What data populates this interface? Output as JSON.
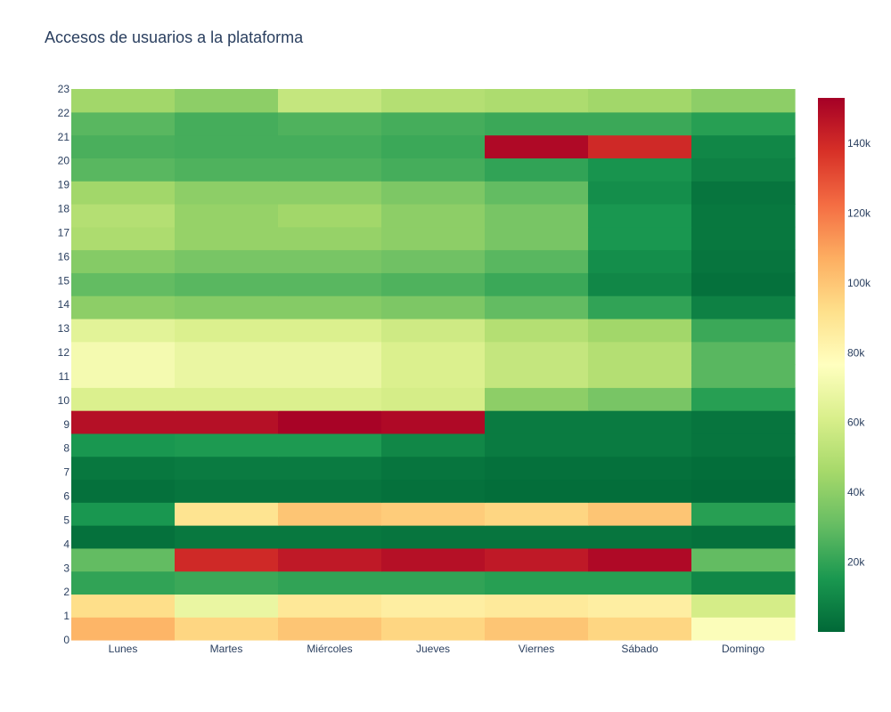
{
  "chart_data": {
    "type": "heatmap",
    "title": "Accesos de usuarios a la plataforma",
    "xlabel": "",
    "ylabel": "",
    "x": [
      "Lunes",
      "Martes",
      "Miércoles",
      "Jueves",
      "Viernes",
      "Sábado",
      "Domingo"
    ],
    "y": [
      0,
      1,
      2,
      3,
      4,
      5,
      6,
      7,
      8,
      9,
      10,
      11,
      12,
      13,
      14,
      15,
      16,
      17,
      18,
      19,
      20,
      21,
      22,
      23
    ],
    "z": [
      [
        105000,
        95000,
        100000,
        95000,
        100000,
        95000,
        75000
      ],
      [
        92000,
        68000,
        88000,
        85000,
        87000,
        85000,
        60000
      ],
      [
        20000,
        22000,
        20000,
        20000,
        18000,
        18000,
        10000
      ],
      [
        30000,
        140000,
        145000,
        148000,
        145000,
        150000,
        30000
      ],
      [
        3000,
        5000,
        5000,
        4000,
        4000,
        4000,
        3000
      ],
      [
        15000,
        90000,
        100000,
        98000,
        95000,
        100000,
        18000
      ],
      [
        3000,
        4000,
        4000,
        3000,
        2000,
        2000,
        1000
      ],
      [
        5000,
        6000,
        6000,
        4000,
        3000,
        3000,
        2000
      ],
      [
        15000,
        16000,
        16000,
        10000,
        6000,
        6000,
        4000
      ],
      [
        148000,
        148000,
        152000,
        150000,
        6000,
        6000,
        4000
      ],
      [
        62000,
        62000,
        62000,
        60000,
        40000,
        35000,
        18000
      ],
      [
        72000,
        68000,
        68000,
        62000,
        55000,
        50000,
        28000
      ],
      [
        72000,
        68000,
        68000,
        62000,
        55000,
        50000,
        28000
      ],
      [
        65000,
        62000,
        62000,
        58000,
        50000,
        45000,
        22000
      ],
      [
        40000,
        38000,
        38000,
        36000,
        30000,
        20000,
        8000
      ],
      [
        30000,
        28000,
        28000,
        26000,
        22000,
        10000,
        3000
      ],
      [
        38000,
        35000,
        35000,
        33000,
        28000,
        12000,
        4000
      ],
      [
        48000,
        42000,
        42000,
        40000,
        35000,
        15000,
        5000
      ],
      [
        50000,
        42000,
        45000,
        40000,
        35000,
        15000,
        5000
      ],
      [
        45000,
        40000,
        40000,
        36000,
        30000,
        12000,
        4000
      ],
      [
        28000,
        26000,
        26000,
        24000,
        20000,
        14000,
        8000
      ],
      [
        25000,
        24000,
        24000,
        22000,
        150000,
        140000,
        10000
      ],
      [
        28000,
        24000,
        26000,
        24000,
        22000,
        22000,
        18000
      ],
      [
        45000,
        40000,
        55000,
        50000,
        48000,
        45000,
        40000
      ]
    ],
    "zrange": [
      0,
      153000
    ],
    "colorscale": "RdYlGn (reversed)",
    "colorbar_ticks": [
      {
        "value": 20000,
        "label": "20k"
      },
      {
        "value": 40000,
        "label": "40k"
      },
      {
        "value": 60000,
        "label": "60k"
      },
      {
        "value": 80000,
        "label": "80k"
      },
      {
        "value": 100000,
        "label": "100k"
      },
      {
        "value": 120000,
        "label": "120k"
      },
      {
        "value": 140000,
        "label": "140k"
      }
    ],
    "colorscale_stops": [
      "#006837",
      "#1a9850",
      "#66bd63",
      "#a6d96a",
      "#d9ef8b",
      "#ffffbf",
      "#fee08b",
      "#fdae61",
      "#f46d43",
      "#d73027",
      "#a50026"
    ]
  }
}
